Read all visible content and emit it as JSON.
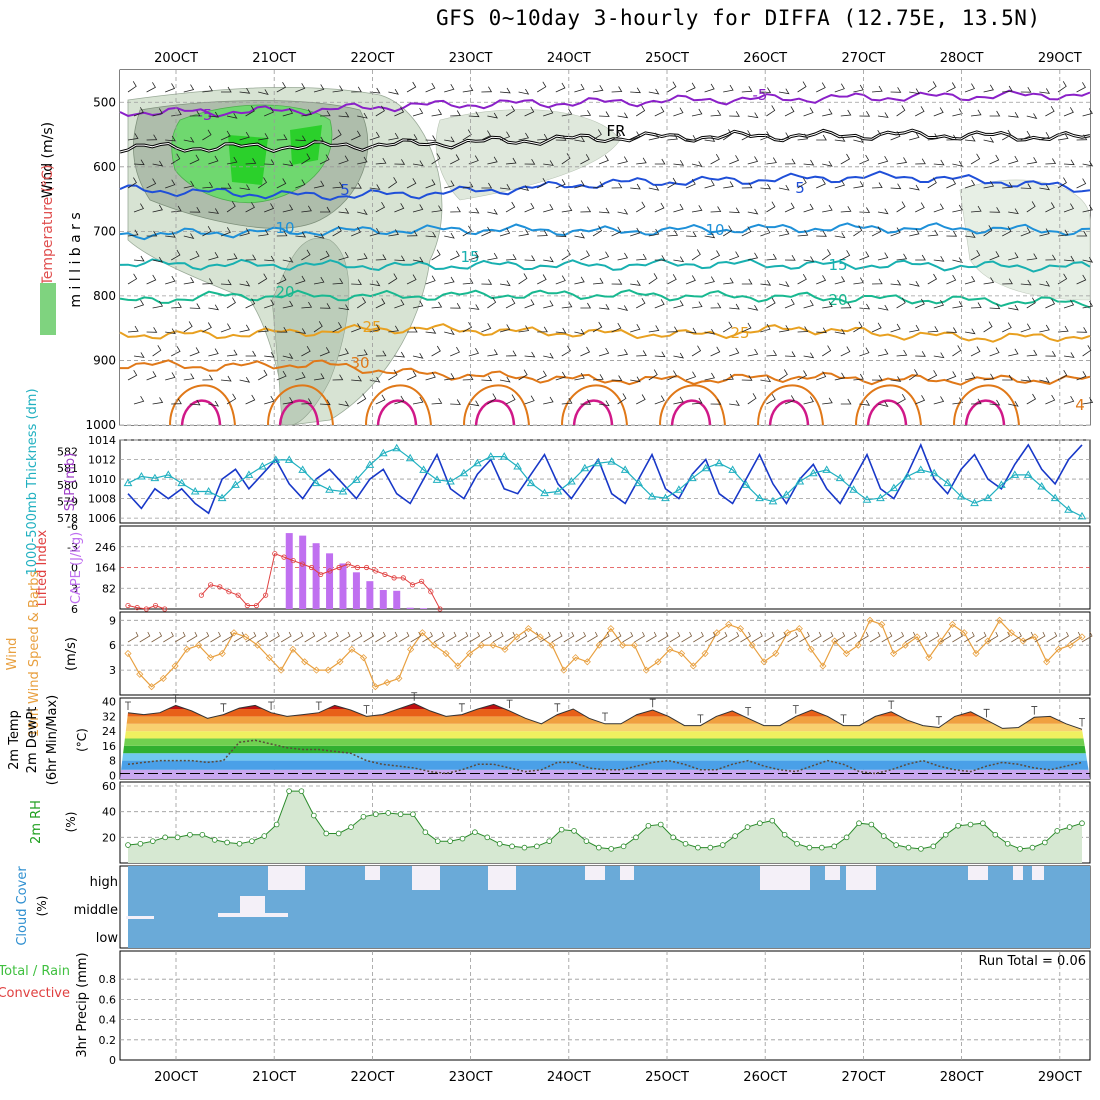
{
  "title": "GFS 0~10day 3-hourly for DIFFA (12.75E, 13.5N)",
  "colors": {
    "purple_iso": "#8a20c8",
    "freezing": "#000000",
    "blue_iso": "#1f4fd8",
    "lightblue_iso": "#1e90d8",
    "teal_iso": "#18b0b0",
    "green_iso": "#18b890",
    "orange_iso": "#e8a020",
    "darkorange_iso": "#e07818",
    "magenta_iso": "#d01888",
    "rh_green": "#3cc83c",
    "slp_line": "#1838c8",
    "thickness_line": "#20b0c0",
    "cape_bar": "#c070f0",
    "li_line": "#e04040",
    "wind_line": "#e8a040",
    "cloud_bg": "#6aaad8",
    "precip_conv": "#e04040",
    "precip_total": "#40c040"
  },
  "chart_data": [
    {
      "type": "contour",
      "name": "profile",
      "ylabel_parts": [
        "RH (%)",
        "Temperature (°C)",
        "Wind (m/s)"
      ],
      "ylabel2": "m i l l i b a r s",
      "ylim": [
        450,
        1000
      ],
      "y_ticks": [
        "500",
        "600",
        "700",
        "800",
        "900",
        "1000"
      ],
      "x_ticks": [
        "20OCT",
        "21OCT",
        "22OCT",
        "23OCT",
        "24OCT",
        "25OCT",
        "26OCT",
        "27OCT",
        "28OCT",
        "29OCT"
      ],
      "isotherms": [
        {
          "label": "-5",
          "values": [
            515,
            515,
            512,
            505,
            502,
            500,
            496,
            494,
            492,
            490,
            488
          ],
          "color": "purple_iso"
        },
        {
          "label": "FR",
          "values": [
            570,
            570,
            568,
            565,
            560,
            555,
            553,
            552,
            550,
            552,
            555
          ],
          "color": "freezing"
        },
        {
          "label": "5",
          "values": [
            635,
            640,
            645,
            642,
            635,
            625,
            622,
            618,
            615,
            622,
            635
          ],
          "color": "blue_iso"
        },
        {
          "label": "10",
          "values": [
            705,
            702,
            700,
            698,
            697,
            700,
            697,
            695,
            695,
            696,
            700
          ],
          "color": "lightblue_iso"
        },
        {
          "label": "15",
          "values": [
            750,
            752,
            752,
            754,
            752,
            753,
            750,
            752,
            752,
            754,
            755
          ],
          "color": "teal_iso"
        },
        {
          "label": "20",
          "values": [
            810,
            800,
            800,
            800,
            798,
            798,
            800,
            802,
            805,
            808,
            810
          ],
          "color": "green_iso"
        },
        {
          "label": "25",
          "values": [
            860,
            860,
            855,
            850,
            855,
            858,
            860,
            850,
            860,
            865,
            862
          ],
          "color": "orange_iso"
        },
        {
          "label": "30",
          "values": [
            905,
            910,
            905,
            920,
            925,
            930,
            930,
            925,
            930,
            930,
            930
          ],
          "color": "darkorange_iso"
        }
      ],
      "contour_labels": [
        "-5",
        "5",
        "10",
        "15",
        "20",
        "25",
        "30",
        "FR",
        "-5",
        "5",
        "10",
        "15",
        "20",
        "25",
        "4"
      ]
    },
    {
      "type": "line",
      "name": "slp_thickness",
      "ylabel_left": "1000-500mb Thickness (dm)",
      "ylabel_right": "SLP (mb)",
      "left_ticks": [
        "578",
        "579",
        "580",
        "581",
        "582"
      ],
      "right_ticks": [
        "1006",
        "1008",
        "1010",
        "1012",
        "1014"
      ],
      "ylim_slp": [
        1005.5,
        1014
      ],
      "ylim_thk": [
        577.7,
        582.7
      ],
      "series": [
        {
          "name": "SLP",
          "values": [
            1008.5,
            1007,
            1009,
            1008,
            1009,
            1007.5,
            1006.5,
            1010,
            1011,
            1009,
            1010.5,
            1012,
            1009.5,
            1008,
            1010,
            1011,
            1009.5,
            1008,
            1010,
            1011,
            1008.5,
            1007.5,
            1010,
            1012.5,
            1009,
            1008,
            1010.5,
            1012,
            1009,
            1008.5,
            1010.5,
            1012.5,
            1009.5,
            1008,
            1010,
            1012,
            1008.5,
            1007.5,
            1010,
            1012.5,
            1009,
            1008,
            1010.5,
            1012,
            1008.5,
            1007.5,
            1010,
            1012.5,
            1009.5,
            1007.5,
            1010,
            1011.5,
            1009,
            1007.5,
            1010,
            1012.5,
            1009,
            1008,
            1010.5,
            1013.5,
            1010,
            1008.5,
            1011,
            1012.5,
            1010,
            1009,
            1011.5,
            1013.5,
            1011,
            1009.5,
            1012,
            1013.5
          ]
        },
        {
          "name": "Thickness",
          "values": [
            580.1,
            580.5,
            580.4,
            580.6,
            580.1,
            579.6,
            579.6,
            579.2,
            580.0,
            580.6,
            581.1,
            581.5,
            581.5,
            580.9,
            580.1,
            579.7,
            579.6,
            580.3,
            581.2,
            581.9,
            582.2,
            581.6,
            580.9,
            580.3,
            580.2,
            580.7,
            581.3,
            581.7,
            581.7,
            581.1,
            580.1,
            579.5,
            579.6,
            580.2,
            581.0,
            581.3,
            581.4,
            580.9,
            580.1,
            579.3,
            579.2,
            579.7,
            580.4,
            581.0,
            581.3,
            580.9,
            580.0,
            579.2,
            579.0,
            579.4,
            580.2,
            580.7,
            580.9,
            580.4,
            579.7,
            579.1,
            579.2,
            579.8,
            580.5,
            580.9,
            580.7,
            580.1,
            579.3,
            578.9,
            579.2,
            580.0,
            580.6,
            580.6,
            579.9,
            579.2,
            578.5,
            578.1
          ]
        }
      ]
    },
    {
      "type": "bar",
      "name": "cape_li",
      "ylabel_left": "Lifted Index",
      "ylabel_right": "CAPE (J/kg)",
      "li_ticks": [
        "-6",
        "-3",
        "0",
        "3",
        "6"
      ],
      "cape_ticks": [
        "82",
        "164",
        "246"
      ],
      "li_range": [
        -6,
        6
      ],
      "cape_range": [
        0,
        328
      ],
      "cape_values": [
        0,
        0,
        0,
        0,
        0,
        0,
        0,
        0,
        0,
        0,
        0,
        0,
        300,
        290,
        260,
        220,
        180,
        145,
        110,
        75,
        72,
        5,
        3,
        0,
        0,
        0,
        0,
        0,
        0,
        0,
        0,
        0,
        0,
        0,
        0,
        0,
        0,
        0,
        0,
        0,
        0,
        0,
        0,
        0,
        0,
        0,
        0,
        0,
        0,
        0,
        0,
        0,
        0,
        0,
        0,
        0,
        0,
        0,
        0,
        0,
        0,
        0,
        0,
        0,
        0,
        0,
        0,
        0,
        0,
        0,
        0,
        0
      ],
      "li_values": [
        5.5,
        5.8,
        6,
        5.5,
        6,
        null,
        null,
        null,
        4,
        2.5,
        2.8,
        3.5,
        4,
        5.5,
        5.5,
        4,
        -2,
        -1.5,
        -1,
        -0.5,
        0,
        1,
        0.5,
        0,
        -0.5,
        0,
        0,
        0.5,
        1,
        1.5,
        1.5,
        2.5,
        2,
        3.5,
        6
      ]
    },
    {
      "type": "line",
      "name": "wind10m",
      "ylabel": "10m Wind Speed & Barbs",
      "unit": "(m/s)",
      "ticks": [
        "3",
        "6",
        "9"
      ],
      "ylim": [
        0,
        10
      ],
      "values": [
        5,
        2.5,
        1,
        2,
        3.5,
        5.5,
        6,
        4.5,
        5,
        7.5,
        7,
        6,
        4.5,
        3,
        5.5,
        4,
        3,
        3,
        4,
        5.5,
        4.5,
        1,
        1.5,
        2,
        5.5,
        7.5,
        6,
        5,
        3.5,
        5,
        6,
        6,
        5.5,
        7,
        8,
        7,
        6,
        3,
        4.5,
        4,
        6,
        8,
        6,
        6,
        3,
        4,
        5.5,
        5,
        3.5,
        5,
        7.5,
        8.5,
        8,
        6,
        4,
        5,
        7.5,
        8,
        5.5,
        3.5,
        6.5,
        5,
        6,
        9,
        8.5,
        5,
        6,
        7,
        4.5,
        6.5,
        8.5,
        7.5,
        5,
        6.5,
        9,
        7.5,
        6.5,
        7,
        4,
        5.5,
        6,
        7
      ]
    },
    {
      "type": "area",
      "name": "temperature",
      "ylabel": "2m Temp 2m DewPt (6hr Min/Max)",
      "unit": "(°C)",
      "ticks": [
        "0",
        "8",
        "16",
        "24",
        "32",
        "40"
      ],
      "ylim": [
        -2,
        42
      ],
      "temp_values": [
        34,
        33,
        34,
        38,
        35,
        31,
        33,
        36.5,
        38,
        34,
        32,
        33,
        34,
        38,
        35.5,
        32,
        33,
        36,
        39,
        35,
        32,
        33,
        36,
        38.5,
        35,
        31,
        28,
        33,
        36,
        31,
        28,
        28,
        33,
        35.5,
        32,
        27,
        27,
        32,
        35,
        31,
        27,
        27,
        32,
        35.5,
        32,
        27,
        27,
        32,
        34.5,
        30,
        27,
        26,
        32,
        34.5,
        30,
        25.5,
        26,
        31.5,
        32,
        28,
        25
      ],
      "dewpt_values": [
        6,
        7,
        8,
        8,
        8,
        7,
        8,
        18,
        19,
        17,
        15,
        14,
        14,
        13,
        12,
        8,
        6,
        5,
        4,
        2,
        1,
        3,
        6,
        6,
        4,
        2,
        3,
        7,
        7,
        4,
        3,
        3,
        5,
        7,
        8,
        6,
        3,
        3,
        6,
        8,
        5,
        3,
        2,
        5,
        8,
        6,
        2,
        1,
        3,
        6,
        8,
        5,
        3,
        2,
        5,
        7,
        6,
        4,
        3,
        5,
        7
      ]
    },
    {
      "type": "area",
      "name": "rh2m",
      "ylabel": "2m RH",
      "unit": "(%)",
      "ticks": [
        "20",
        "40",
        "60"
      ],
      "ylim": [
        0,
        60
      ],
      "values": [
        14,
        15,
        17,
        20,
        20,
        22,
        22,
        18,
        16,
        15,
        17,
        21,
        30,
        56,
        56,
        37,
        23,
        23,
        28,
        36,
        38,
        39,
        38,
        38,
        24,
        17,
        17,
        19,
        24,
        20,
        15,
        13,
        12,
        13,
        17,
        26,
        25,
        17,
        12,
        11,
        13,
        20,
        29,
        30,
        20,
        15,
        12,
        12,
        14,
        21,
        28,
        31,
        33,
        22,
        15,
        12,
        12,
        13,
        20,
        31,
        30,
        21,
        14,
        12,
        11,
        13,
        22,
        29,
        30,
        31,
        22,
        15,
        11,
        12,
        16,
        25,
        28,
        31
      ]
    },
    {
      "type": "bar",
      "name": "cloud_cover",
      "ylabel": "Cloud Cover",
      "unit": "(%)",
      "levels": [
        "high",
        "middle",
        "low"
      ]
    },
    {
      "type": "bar",
      "name": "precip",
      "ylabel": "3hr Precip (mm)",
      "ylabel2_total": "Total / Rain",
      "ylabel2_conv": "Convective",
      "ticks": [
        "0",
        "0.2",
        "0.4",
        "0.6",
        "0.8"
      ],
      "ylim": [
        0,
        1
      ],
      "run_total": "Run Total = 0.06",
      "bars": [
        {
          "x": 17.7,
          "total": 0.06,
          "convective": 0.06
        }
      ]
    }
  ]
}
